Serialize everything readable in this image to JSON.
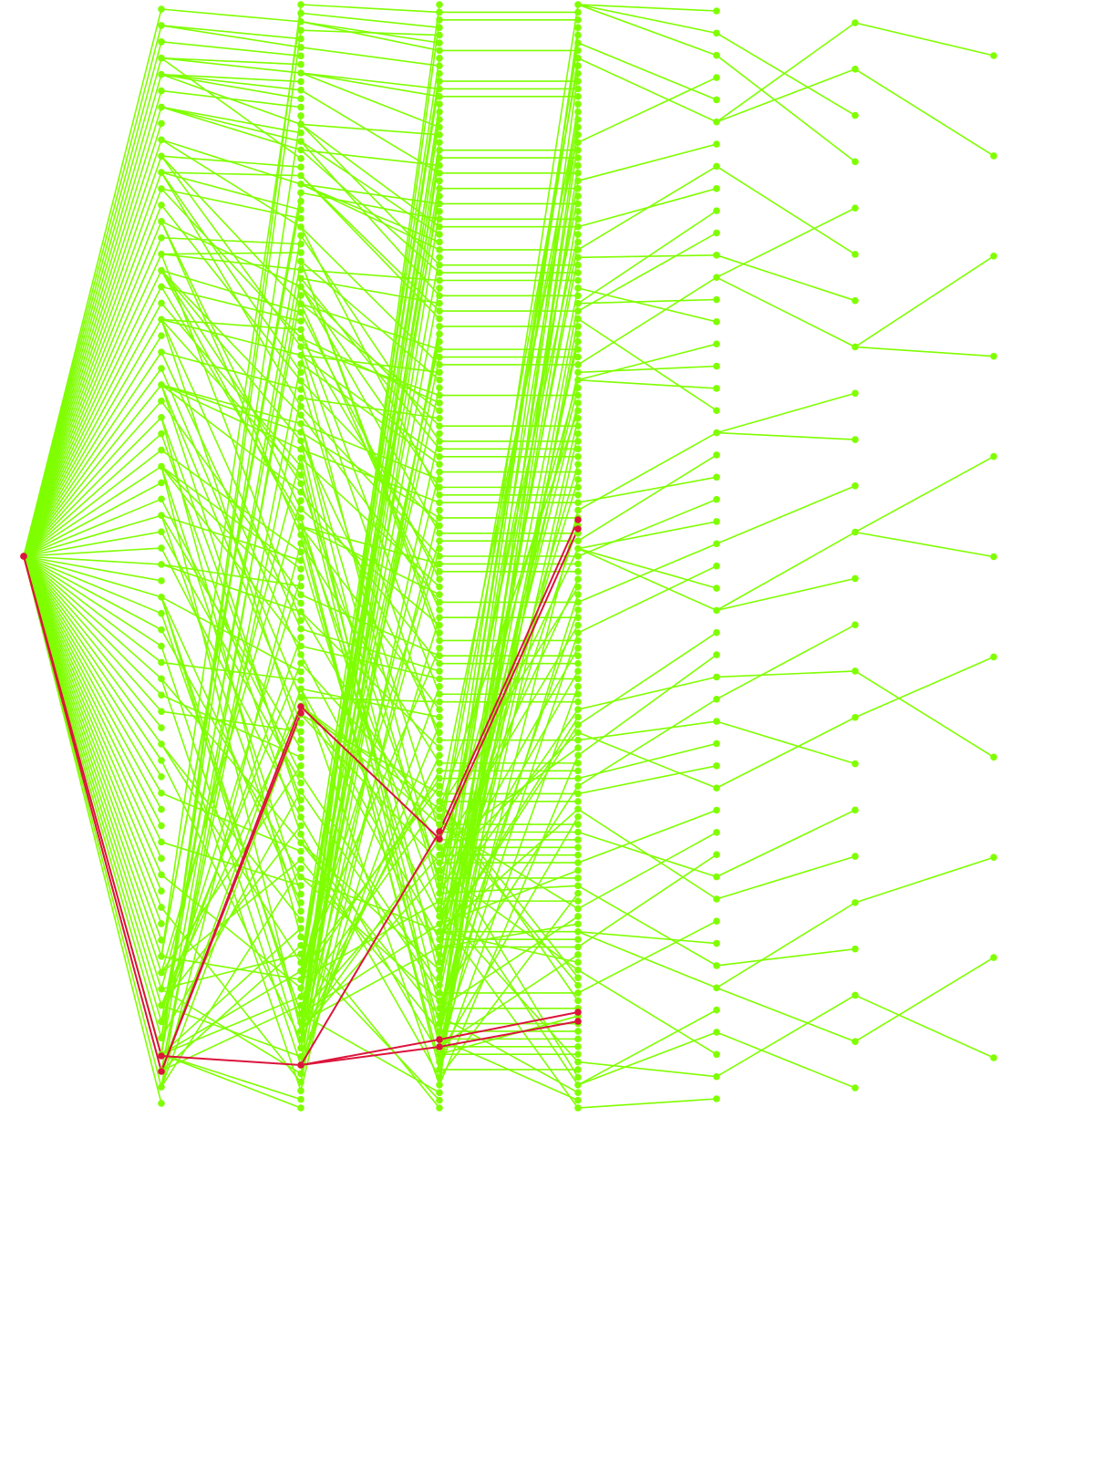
{
  "diagram": {
    "type": "layered-tree",
    "depth_levels": 8,
    "colors": {
      "background": "#ffffff",
      "edge": "#7fff00",
      "node": "#7fff00",
      "highlight_edge": "#dc143c",
      "highlight_node": "#dc143c"
    },
    "level_node_counts": [
      1,
      68,
      130,
      145,
      145,
      50,
      24,
      11
    ],
    "highlighted_path": {
      "description_levels": [
        0,
        1,
        2,
        3,
        4
      ],
      "branch_count": 2
    },
    "labels_shown": false
  }
}
